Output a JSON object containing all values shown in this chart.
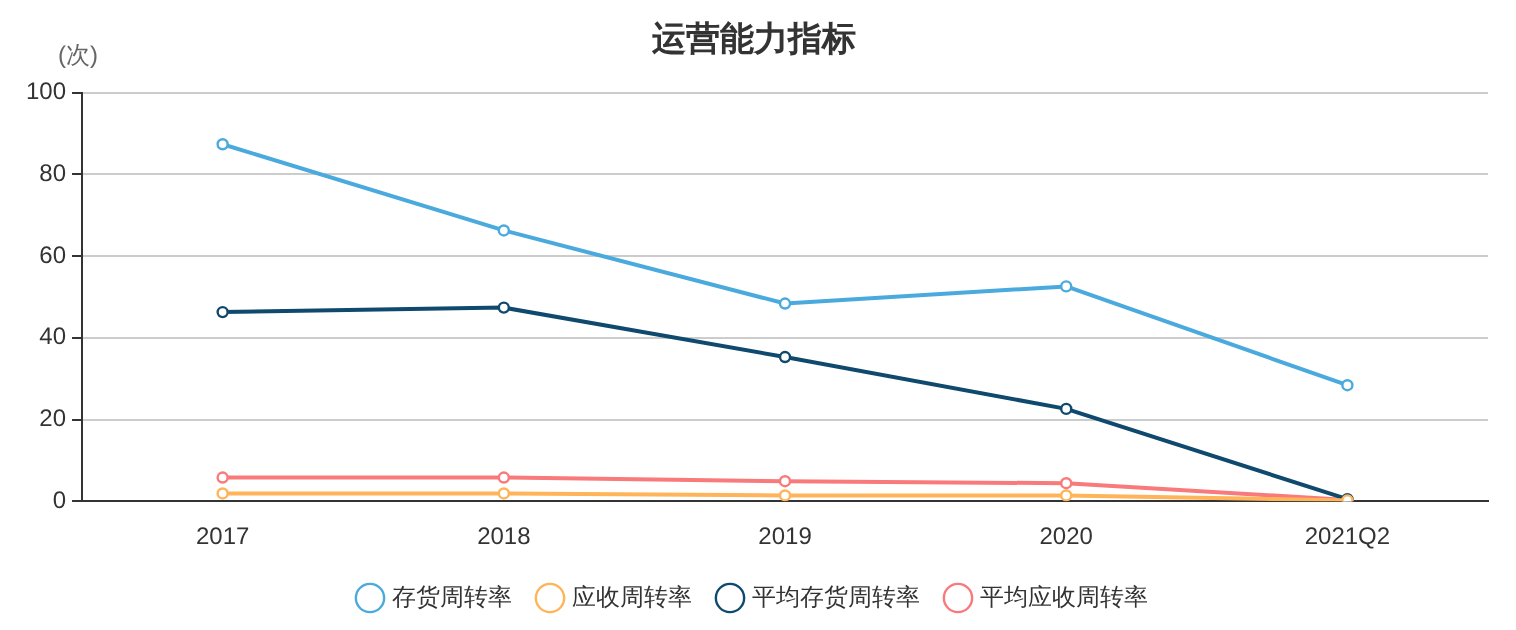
{
  "chart_data": {
    "type": "line",
    "title": "运营能力指标",
    "ylabel": "(次)",
    "categories": [
      "2017",
      "2018",
      "2019",
      "2020",
      "2021Q2"
    ],
    "series": [
      {
        "name": "存货周转率",
        "color": "#4aaadd",
        "values": [
          87.4,
          66.3,
          48.4,
          52.6,
          28.4
        ]
      },
      {
        "name": "应收周转率",
        "color": "#ffb45a",
        "values": [
          1.9,
          1.9,
          1.4,
          1.4,
          0.2
        ]
      },
      {
        "name": "平均存货周转率",
        "color": "#0f4a6e",
        "values": [
          46.3,
          47.4,
          35.3,
          22.6,
          0.5
        ]
      },
      {
        "name": "平均应收周转率",
        "color": "#f97a7a",
        "values": [
          5.8,
          5.8,
          4.9,
          4.4,
          0.3
        ]
      }
    ],
    "ylim": [
      0,
      100
    ],
    "yticks": [
      0,
      20,
      40,
      60,
      80,
      100
    ],
    "grid": "y",
    "legend": "bottom",
    "marker": "circle",
    "line_style": "solid"
  }
}
